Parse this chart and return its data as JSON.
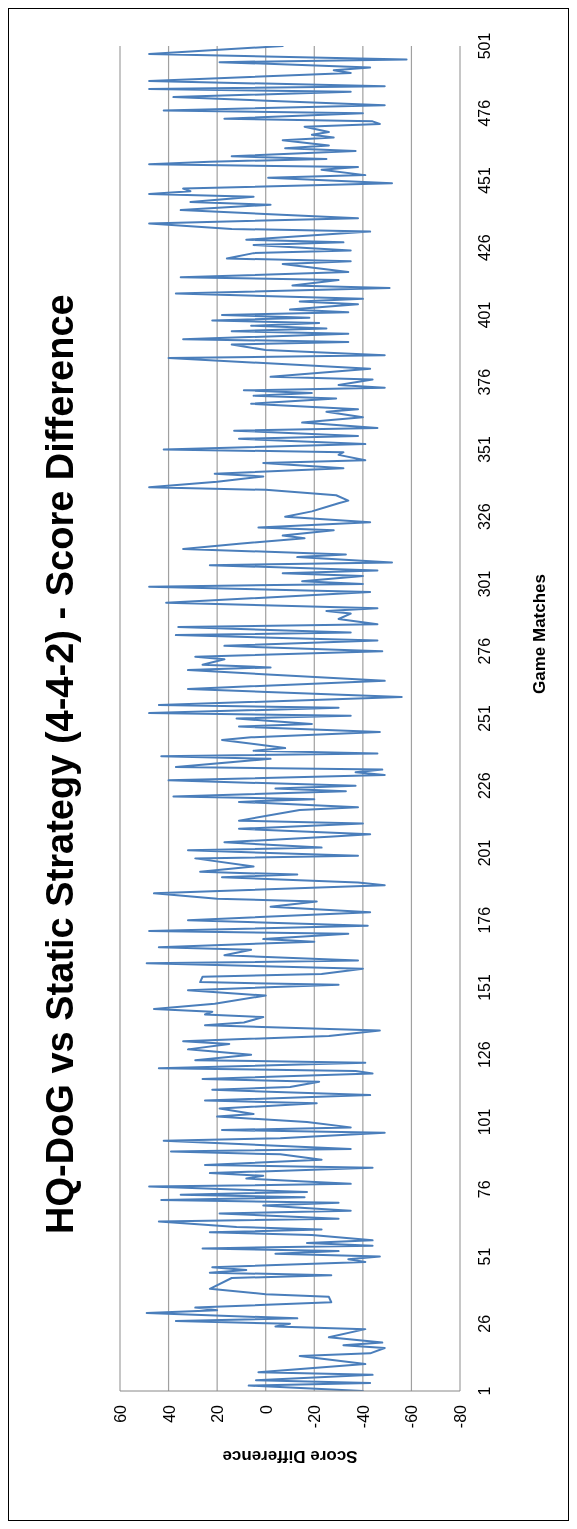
{
  "chart_data": {
    "type": "line",
    "title": "HQ-DoG vs Static Strategy (4-4-2) - Score Difference",
    "xlabel": "Score Difference",
    "ylabel": "Game Matches",
    "orientation": "horizontal",
    "ylim": [
      1,
      501
    ],
    "yticks": [
      1,
      26,
      51,
      76,
      101,
      126,
      151,
      176,
      201,
      226,
      251,
      276,
      301,
      326,
      351,
      376,
      401,
      426,
      451,
      476,
      501
    ],
    "xlim": [
      60,
      -80
    ],
    "xticks": [
      60,
      40,
      20,
      0,
      -20,
      -40,
      -60,
      -80
    ],
    "grid": "x",
    "marker": "none",
    "color": "#4a7ebb",
    "x": [
      1,
      3,
      4,
      5,
      7,
      8,
      11,
      14,
      15,
      17,
      18,
      19,
      21,
      24,
      25,
      26,
      27,
      28,
      30,
      31,
      32,
      34,
      36,
      37,
      39,
      43,
      44,
      45,
      46,
      47,
      49,
      50,
      51,
      52,
      53,
      54,
      55,
      56,
      57,
      59,
      60,
      61,
      62,
      64,
      65,
      67,
      68,
      70,
      71,
      72,
      73,
      74,
      75,
      77,
      78,
      80,
      81,
      82,
      84,
      85,
      87,
      89,
      90,
      91,
      94,
      95,
      97,
      98,
      99,
      101,
      103,
      104,
      106,
      108,
      109,
      111,
      113,
      114,
      116,
      117,
      119,
      120,
      121,
      123,
      124,
      126,
      128,
      130,
      131,
      133,
      135,
      137,
      138,
      140,
      141,
      142,
      143,
      145,
      148,
      150,
      152,
      153,
      155,
      156,
      158,
      160,
      161,
      163,
      165,
      166,
      168,
      169,
      171,
      172,
      174,
      176,
      179,
      181,
      183,
      184,
      186,
      189,
      190,
      192,
      193,
      194,
      196,
      199,
      200,
      202,
      203,
      205,
      207,
      208,
      210,
      212,
      213,
      217,
      218,
      220,
      221,
      222,
      224,
      225,
      226,
      228,
      230,
      231,
      232,
      233,
      236,
      237,
      238,
      239,
      240,
      243,
      244,
      246,
      248,
      249,
      251,
      252,
      253,
      255,
      256,
      259,
      262,
      265,
      269,
      270,
      271,
      273,
      274,
      276,
      278,
      280,
      282,
      283,
      285,
      286,
      288,
      290,
      291,
      292,
      294,
      298,
      300,
      301,
      302,
      304,
      305,
      306,
      308,
      309,
      311,
      312,
      314,
      316,
      318,
      319,
      321,
      322,
      324,
      326,
      328,
      331,
      332,
      334,
      336,
      337,
      339,
      341,
      342,
      344,
      346,
      347,
      349,
      350,
      351,
      353,
      355,
      356,
      358,
      359,
      361,
      363,
      365,
      366,
      368,
      370,
      371,
      372,
      373,
      374,
      375,
      377,
      378,
      381,
      385,
      386,
      388,
      390,
      391,
      392,
      394,
      395,
      396,
      397,
      398,
      399,
      400,
      401,
      402,
      403,
      405,
      406,
      407,
      409,
      411,
      412,
      414,
      415,
      417,
      420,
      421,
      422,
      424,
      425,
      427,
      428,
      429,
      432,
      433,
      435,
      437,
      440,
      442,
      443,
      445,
      446,
      447,
      448,
      450,
      452,
      453,
      455,
      456,
      457,
      458,
      459,
      460,
      462,
      463,
      464,
      466,
      467,
      468,
      469,
      471,
      472,
      473,
      474,
      476,
      477,
      479,
      482,
      484,
      485,
      486,
      488,
      491,
      492,
      493,
      495,
      496,
      498,
      501
    ],
    "values": [
      -40,
      7,
      -43,
      4,
      -44,
      3,
      -41,
      -14,
      -43,
      -49,
      -32,
      -48,
      -26,
      -41,
      -4,
      -10,
      37,
      -13,
      49,
      20,
      29,
      -27,
      -26,
      0,
      23,
      14,
      -27,
      23,
      8,
      22,
      -41,
      -34,
      -47,
      -4,
      -30,
      26,
      -44,
      -17,
      -44,
      -19,
      23,
      -23,
      12,
      44,
      -30,
      19,
      -35,
      1,
      -30,
      43,
      -16,
      35,
      -17,
      48,
      -35,
      8,
      1,
      23,
      -44,
      25,
      -23,
      -6,
      39,
      -35,
      42,
      -6,
      -49,
      18,
      -35,
      -17,
      20,
      5,
      19,
      -21,
      25,
      -43,
      22,
      -10,
      -22,
      26,
      -44,
      -37,
      44,
      -41,
      29,
      6,
      32,
      15,
      34,
      -26,
      -47,
      25,
      9,
      1,
      25,
      22,
      46,
      21,
      0,
      32,
      -30,
      27,
      26,
      -23,
      -40,
      49,
      -38,
      17,
      6,
      44,
      -20,
      1,
      -34,
      48,
      -42,
      32,
      -43,
      -2,
      -21,
      20,
      46,
      -49,
      -38,
      18,
      -13,
      27,
      5,
      29,
      -38,
      32,
      -23,
      17,
      -26,
      -43,
      11,
      -40,
      11,
      -14,
      -38,
      11,
      -20,
      38,
      -33,
      -4,
      -37,
      40,
      -49,
      -37,
      -48,
      37,
      -2,
      43,
      -46,
      5,
      -8,
      18,
      6,
      -47,
      11,
      -19,
      12,
      -35,
      48,
      -30,
      44,
      -56,
      32,
      -49,
      32,
      -2,
      26,
      17,
      29,
      -48,
      17,
      -46,
      37,
      -35,
      36,
      -46,
      -30,
      -35,
      -25,
      -46,
      41,
      -43,
      48,
      -40,
      -15,
      -40,
      -7,
      -46,
      23,
      -52,
      -13,
      -33,
      34,
      11,
      -16,
      -7,
      -28,
      3,
      -43,
      -8,
      -19,
      -30,
      -34,
      -29,
      0,
      48,
      20,
      1,
      21,
      -32,
      1,
      -41,
      -30,
      -32,
      42,
      -41,
      11,
      -38,
      13,
      -46,
      -15,
      -40,
      -25,
      -38,
      6,
      -29,
      5,
      -19,
      9,
      -49,
      -30,
      -44,
      -2,
      -43,
      40,
      -49,
      0,
      14,
      -34,
      34,
      -34,
      14,
      -25,
      6,
      -22,
      22,
      -18,
      18,
      -34,
      -10,
      -38,
      -14,
      -40,
      37,
      -51,
      -11,
      -30,
      35,
      -34,
      -7,
      -35,
      16,
      5,
      -35,
      5,
      -32,
      8,
      -43,
      14,
      48,
      -38,
      35,
      -2,
      31,
      5,
      48,
      31,
      34,
      -52,
      -1,
      -41,
      -23,
      -38,
      48,
      23,
      -25,
      14,
      -37,
      -8,
      -26,
      -7,
      -28,
      -19,
      -26,
      -16,
      -47,
      -44,
      17,
      -40,
      42,
      -49,
      38,
      -35,
      48,
      -49,
      48,
      -35,
      -28,
      -43,
      19,
      -58,
      48,
      -7
    ]
  }
}
